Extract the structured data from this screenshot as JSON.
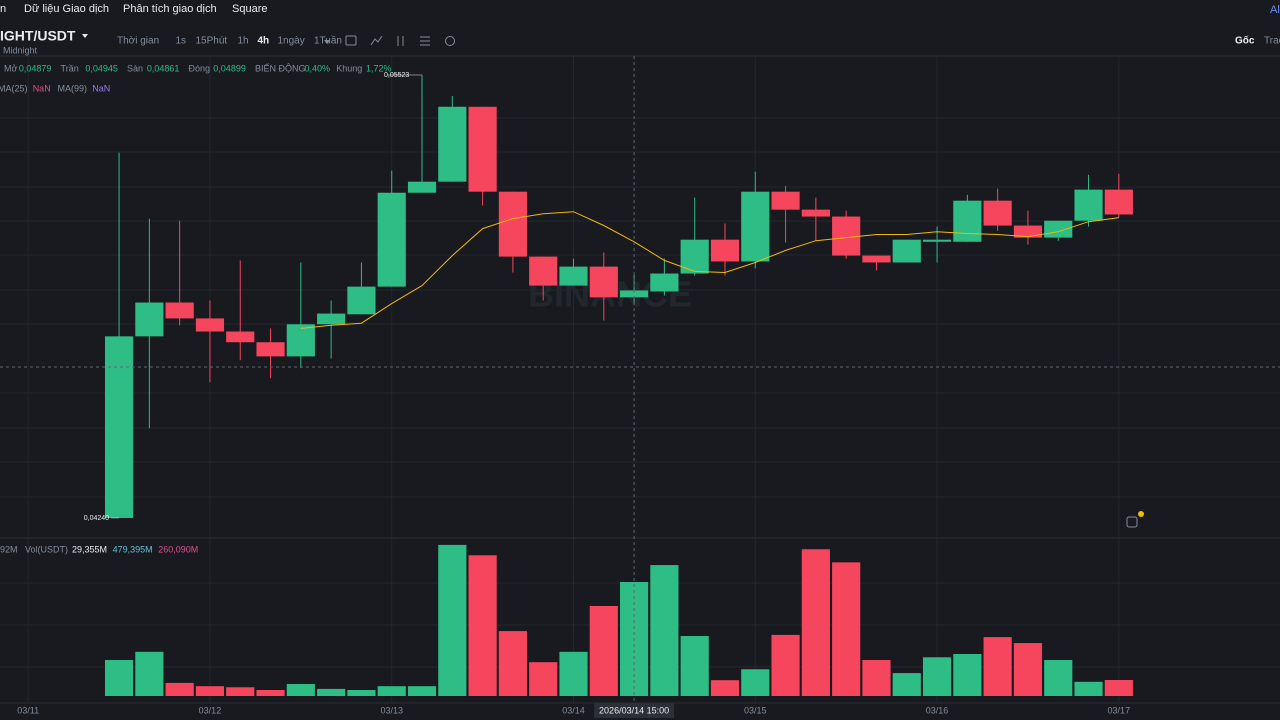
{
  "nav": {
    "items": [
      "n",
      "Dữ liệu Giao dịch",
      "Phân tích giao dịch",
      "Square"
    ],
    "right": "Al"
  },
  "symbol": {
    "pair": "IGHT/USDT",
    "name": "Midnight"
  },
  "toolbar": {
    "intervals": [
      "Thời gian",
      "1s",
      "15Phút",
      "1h",
      "4h",
      "1ngày",
      "1Tuần"
    ],
    "active": "4h",
    "right": [
      "Gốc",
      "Trac"
    ]
  },
  "ohlc_bar": [
    {
      "label": "Mở",
      "value": "0,04879"
    },
    {
      "label": "Trần",
      "value": "0,04945"
    },
    {
      "label": "Sàn",
      "value": "0,04861"
    },
    {
      "label": "Đóng",
      "value": "0,04899"
    },
    {
      "label": "BIẾN ĐỘNG",
      "value": "0,40%"
    },
    {
      "label": "Khung",
      "value": "1,72%"
    }
  ],
  "ma_legend": [
    {
      "label": "MA(25)",
      "value": "NaN"
    },
    {
      "label": "MA(99)",
      "value": "NaN"
    }
  ],
  "vol_legend": {
    "prefix": "92M",
    "label": "Vol(USDT)",
    "values": [
      "29,355M",
      "479,395M",
      "260,090M"
    ]
  },
  "crosshair_label": "2026/03/14 15:00",
  "chart_data": {
    "type": "candlestick",
    "x": [
      0,
      1,
      2,
      3,
      4,
      5,
      6,
      7,
      8,
      9,
      10,
      11,
      12,
      13,
      14,
      15,
      16,
      17,
      18,
      19,
      20,
      21,
      22,
      23,
      24,
      25,
      26,
      27,
      28,
      29,
      30,
      31,
      32,
      33
    ],
    "open": [
      0.0424,
      0.04766,
      0.04864,
      0.04818,
      0.0478,
      0.04749,
      0.04708,
      0.04801,
      0.0483,
      0.0491,
      0.05182,
      0.05214,
      0.05431,
      0.05185,
      0.04997,
      0.04913,
      0.04968,
      0.04879,
      0.04896,
      0.04948,
      0.05046,
      0.04983,
      0.05185,
      0.05133,
      0.05113,
      0.05,
      0.0498,
      0.0504,
      0.0504,
      0.05159,
      0.05087,
      0.05052,
      0.05101,
      0.05191
    ],
    "high": [
      0.05298,
      0.05107,
      0.05101,
      0.0487,
      0.04986,
      0.04789,
      0.0498,
      0.0487,
      0.0498,
      0.05246,
      0.05523,
      0.05462,
      0.05431,
      0.05185,
      0.04997,
      0.04991,
      0.05009,
      0.04945,
      0.04991,
      0.05168,
      0.05093,
      0.05243,
      0.05202,
      0.05168,
      0.0513,
      0.05,
      0.05046,
      0.05084,
      0.05176,
      0.05194,
      0.0513,
      0.05101,
      0.05234,
      0.05237
    ],
    "low": [
      0.0424,
      0.045,
      0.04798,
      0.04633,
      0.04697,
      0.04645,
      0.04674,
      0.04702,
      0.0483,
      0.0491,
      0.05182,
      0.05214,
      0.05145,
      0.04951,
      0.0487,
      0.04913,
      0.04812,
      0.04861,
      0.04884,
      0.04942,
      0.04942,
      0.04963,
      0.05038,
      0.05043,
      0.04991,
      0.04957,
      0.0498,
      0.0498,
      0.0504,
      0.05072,
      0.05032,
      0.05043,
      0.05084,
      0.0511
    ],
    "close": [
      0.04766,
      0.04864,
      0.04818,
      0.0478,
      0.04749,
      0.04708,
      0.04801,
      0.04832,
      0.0491,
      0.05182,
      0.05214,
      0.05431,
      0.05185,
      0.04997,
      0.04913,
      0.04968,
      0.04879,
      0.04899,
      0.04948,
      0.05046,
      0.04983,
      0.05185,
      0.05133,
      0.05113,
      0.05,
      0.0498,
      0.05046,
      0.05046,
      0.05159,
      0.05087,
      0.05052,
      0.05101,
      0.05191,
      0.05119
    ],
    "ma7": {
      "color": "#f0b90b",
      "values": [
        null,
        null,
        null,
        null,
        null,
        null,
        0.04789,
        0.04798,
        0.04804,
        0.04861,
        0.04913,
        0.05,
        0.05078,
        0.05107,
        0.05121,
        0.05127,
        0.05087,
        0.0504,
        0.04986,
        0.04954,
        0.04951,
        0.0498,
        0.05015,
        0.05043,
        0.05052,
        0.05061,
        0.05061,
        0.05069,
        0.05064,
        0.05061,
        0.05055,
        0.05069,
        0.05098,
        0.0511
      ]
    },
    "up_color": "#2ebd85",
    "down_color": "#f6465d",
    "ylim": [
      0.04182,
      0.05578
    ],
    "xlim": [
      -3.93,
      38.32
    ],
    "xticks": [
      {
        "value": -3,
        "label": "03/11"
      },
      {
        "value": 3,
        "label": "03/12"
      },
      {
        "value": 9,
        "label": "03/13"
      },
      {
        "value": 15,
        "label": "03/14"
      },
      {
        "value": 21,
        "label": "03/15"
      },
      {
        "value": 27,
        "label": "03/16"
      },
      {
        "value": 33,
        "label": "03/17"
      }
    ],
    "high_label": {
      "value": 0.05523,
      "label": "0,05523"
    },
    "low_label": {
      "value": 0.0424,
      "label": "0,04240"
    },
    "crosshair_x": 17,
    "volume": {
      "values": [
        66,
        81,
        24,
        18,
        16,
        11,
        22,
        13,
        11,
        18,
        18,
        277,
        258,
        119,
        62,
        81,
        165,
        209,
        240,
        110,
        29,
        49,
        112,
        269,
        245,
        66,
        42,
        71,
        77,
        108,
        97,
        66,
        26,
        29.355
      ],
      "ylim": [
        0,
        286
      ]
    },
    "grid": true
  }
}
